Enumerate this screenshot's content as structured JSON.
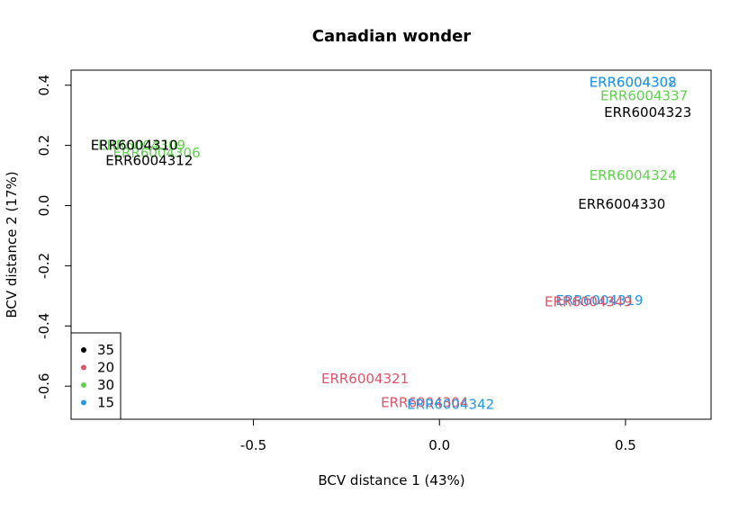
{
  "chart_data": {
    "type": "scatter",
    "title": "Canadian wonder",
    "xlabel": "BCV distance 1 (43%)",
    "ylabel": "BCV distance 2 (17%)",
    "xlim": [
      -0.99,
      0.73
    ],
    "ylim": [
      -0.71,
      0.45
    ],
    "xticks": [
      -0.5,
      0.0,
      0.5
    ],
    "xtick_labels": [
      "-0.5",
      "0.0",
      "0.5"
    ],
    "yticks": [
      -0.6,
      -0.4,
      -0.2,
      0.0,
      0.2,
      0.4
    ],
    "ytick_labels": [
      "-0.6",
      "-0.4",
      "-0.2",
      "0.0",
      "0.2",
      "0.4"
    ],
    "grid": false,
    "legend_position": "bottom-left",
    "legend": [
      {
        "label": "35",
        "color": "#000000"
      },
      {
        "label": "20",
        "color": "#DF536B"
      },
      {
        "label": "30",
        "color": "#61D04F"
      },
      {
        "label": "15",
        "color": "#2297E6"
      }
    ],
    "points": [
      {
        "label": "ERR6004302",
        "x": 0.52,
        "y": 0.41,
        "group": "15"
      },
      {
        "label": "ERR6004308",
        "x": 0.52,
        "y": 0.41,
        "group": "15"
      },
      {
        "label": "ERR6004337",
        "x": 0.55,
        "y": 0.365,
        "group": "30"
      },
      {
        "label": "ERR6004323",
        "x": 0.56,
        "y": 0.31,
        "group": "35"
      },
      {
        "label": "ERR6004324",
        "x": 0.52,
        "y": 0.1,
        "group": "30"
      },
      {
        "label": "ERR6004330",
        "x": 0.49,
        "y": 0.005,
        "group": "35"
      },
      {
        "label": "ERR6004309",
        "x": -0.8,
        "y": 0.2,
        "group": "30"
      },
      {
        "label": "ERR6004306",
        "x": -0.76,
        "y": 0.175,
        "group": "30"
      },
      {
        "label": "ERR6004310",
        "x": -0.82,
        "y": 0.2,
        "group": "35"
      },
      {
        "label": "ERR6004312",
        "x": -0.78,
        "y": 0.15,
        "group": "35"
      },
      {
        "label": "ERR6004319",
        "x": 0.43,
        "y": -0.315,
        "group": "15"
      },
      {
        "label": "ERR6004349",
        "x": 0.4,
        "y": -0.32,
        "group": "20"
      },
      {
        "label": "ERR6004321",
        "x": -0.2,
        "y": -0.575,
        "group": "20"
      },
      {
        "label": "ERR6004304",
        "x": -0.04,
        "y": -0.655,
        "group": "20"
      },
      {
        "label": "ERR6004342",
        "x": 0.03,
        "y": -0.66,
        "group": "15"
      }
    ]
  }
}
